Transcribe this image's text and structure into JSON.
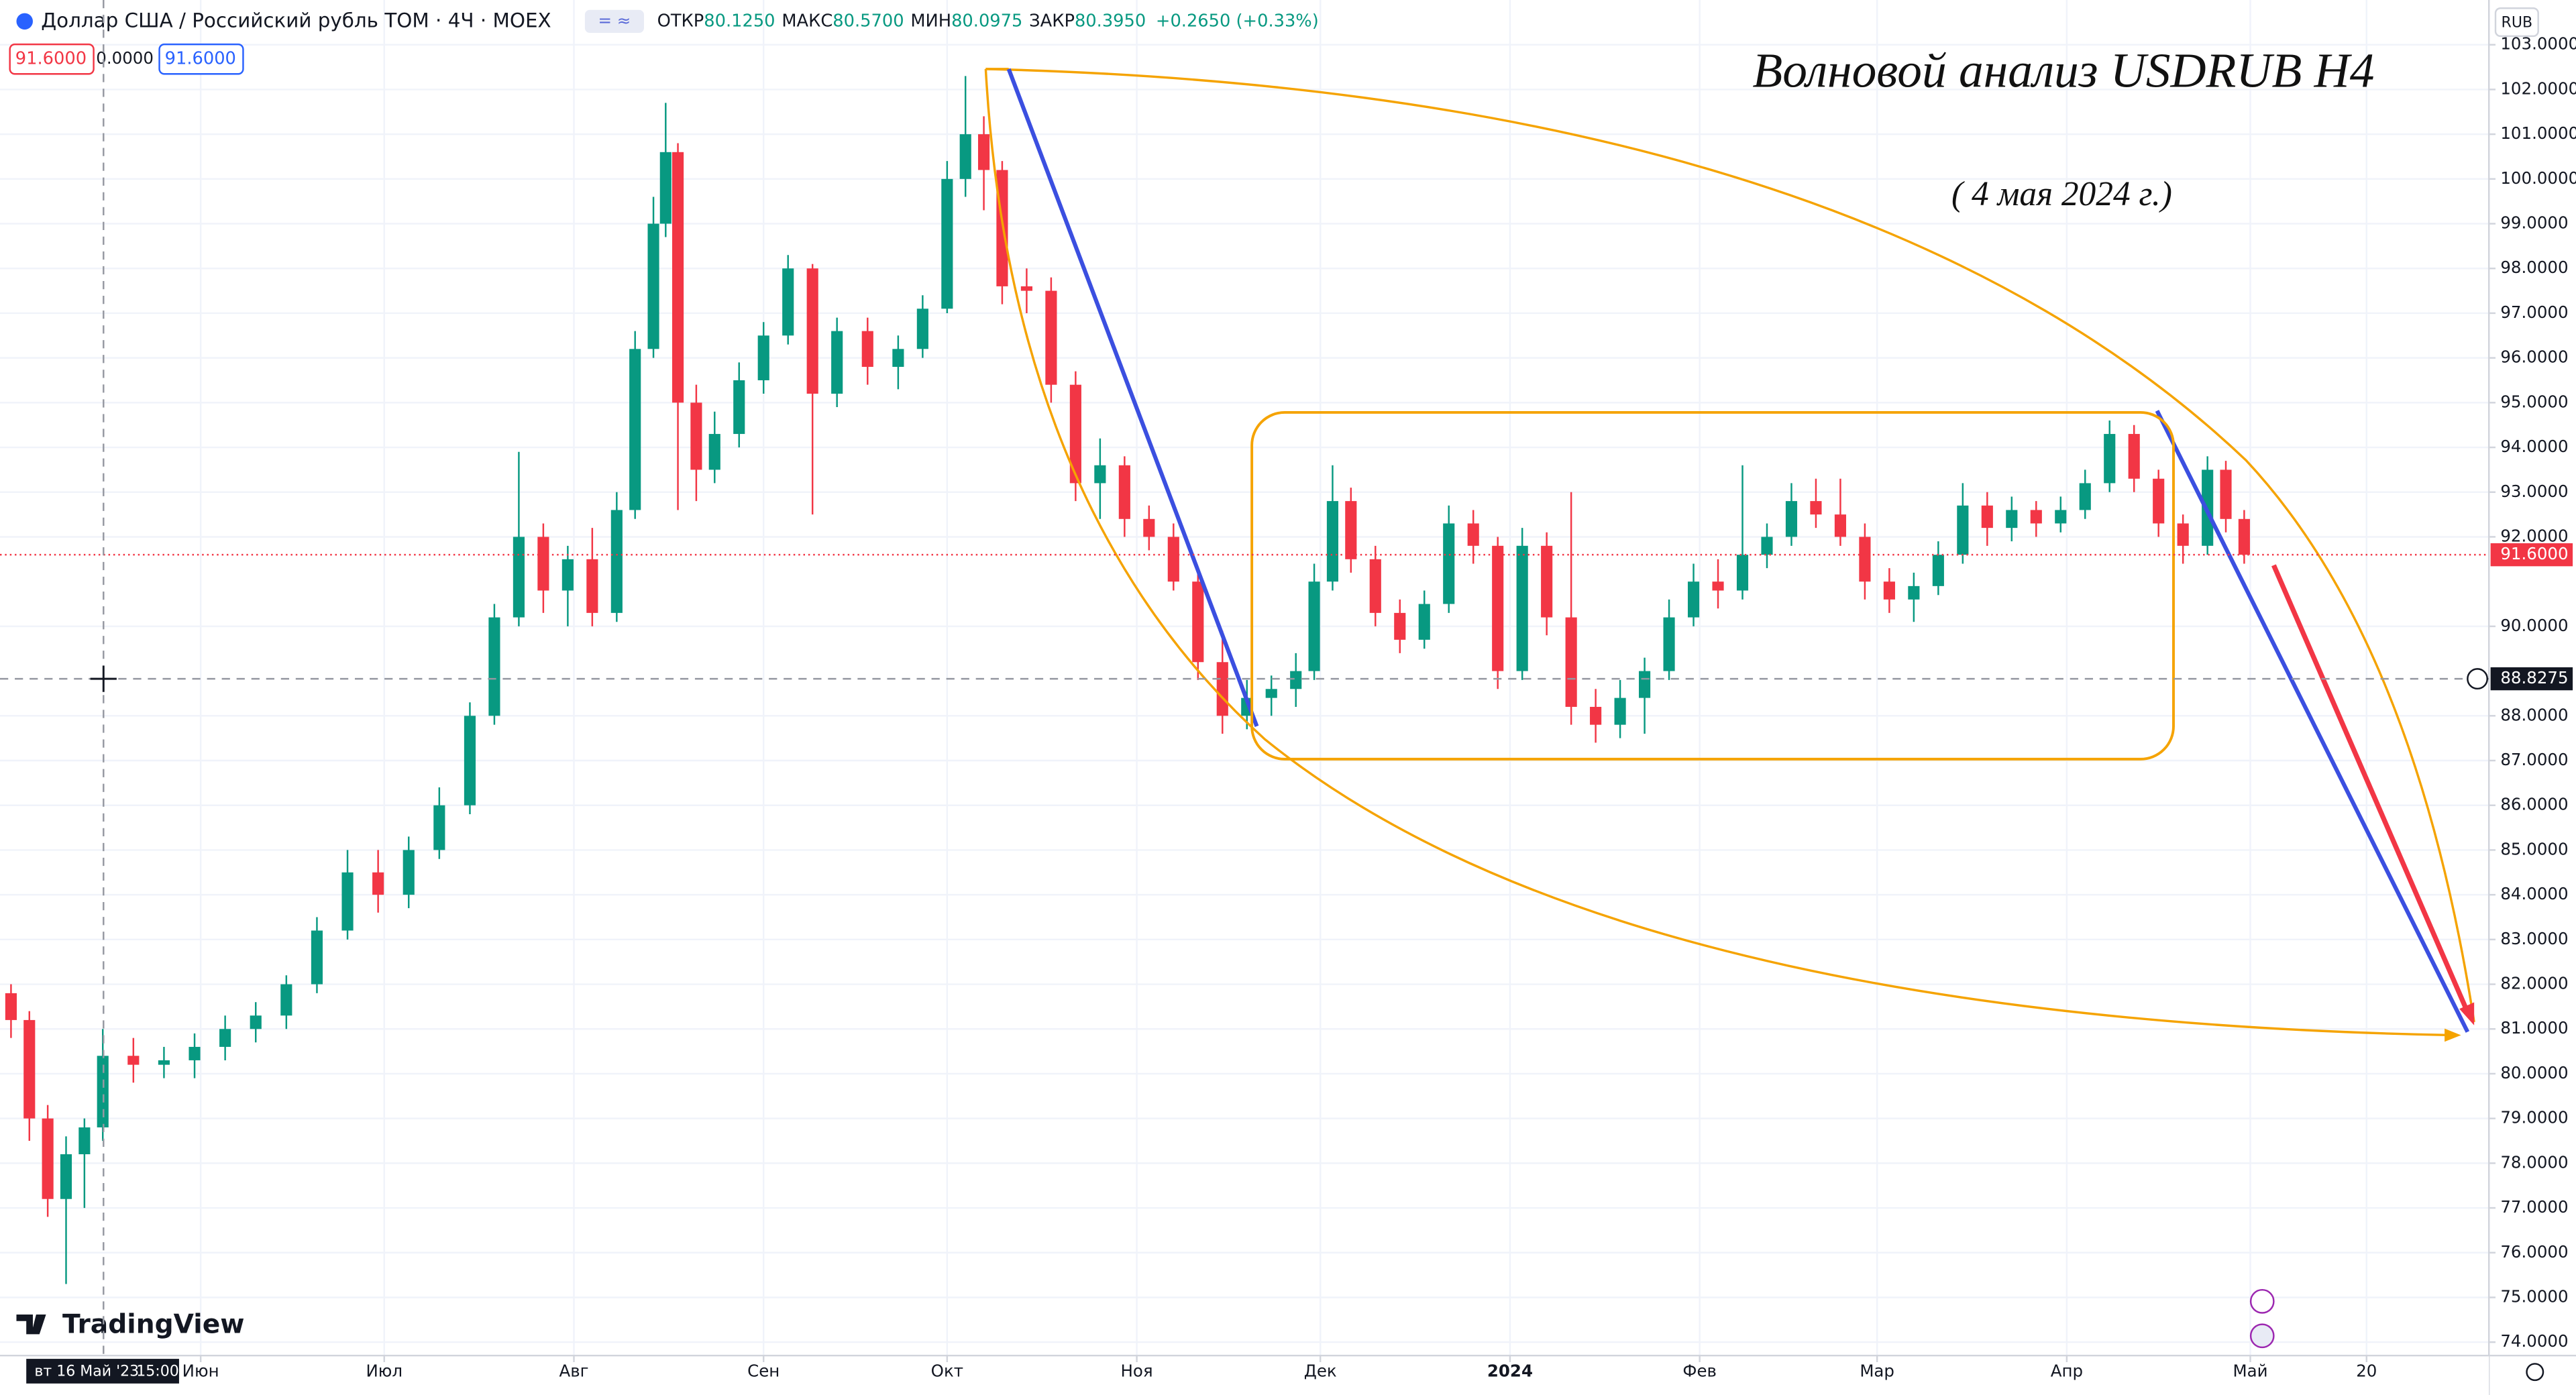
{
  "chart_data": {
    "type": "candlestick",
    "symbol": "Доллар США / Российский рубль TOM · 4Ч · MOEX",
    "ohlc_header": [
      {
        "label": "ОТКР",
        "value": "80.1250"
      },
      {
        "label": "МАКС",
        "value": "80.5700"
      },
      {
        "label": "МИН",
        "value": "80.0975"
      },
      {
        "label": "ЗАКР",
        "value": "80.3950"
      }
    ],
    "change": "+0.2650 (+0.33%)",
    "price_boxes": [
      "91.6000",
      "0.0000",
      "91.6000"
    ],
    "annotations": [
      "Волновой анализ USDRUB H4",
      "( 4 мая 2024 г.)"
    ],
    "currency": "RUB",
    "brand": "TradingView",
    "last_price": {
      "value": 91.6,
      "label": "91.6000"
    },
    "crosshair": {
      "value": 88.8275,
      "label": "88.8275",
      "time_label": "вт 16 Май '23",
      "time": "15:00"
    },
    "up_color": "#089981",
    "down_color": "#f23645",
    "grid": true,
    "xlim": [
      -1.8,
      405
    ],
    "xticks": [
      {
        "value": 31,
        "label": "Июн"
      },
      {
        "value": 61,
        "label": "Июл"
      },
      {
        "value": 92,
        "label": "Авг"
      },
      {
        "value": 123,
        "label": "Сен"
      },
      {
        "value": 153,
        "label": "Окт"
      },
      {
        "value": 184,
        "label": "Ноя"
      },
      {
        "value": 214,
        "label": "Дек"
      },
      {
        "value": 245,
        "label": "2024"
      },
      {
        "value": 276,
        "label": "Фев"
      },
      {
        "value": 305,
        "label": "Мар"
      },
      {
        "value": 336,
        "label": "Апр"
      },
      {
        "value": 366,
        "label": "Май"
      },
      {
        "value": 385,
        "label": "20"
      }
    ],
    "ylim": [
      73.7,
      104
    ],
    "yticks": [
      {
        "value": 74,
        "label": "74.0000"
      },
      {
        "value": 75,
        "label": "75.0000"
      },
      {
        "value": 76,
        "label": "76.0000"
      },
      {
        "value": 77,
        "label": "77.0000"
      },
      {
        "value": 78,
        "label": "78.0000"
      },
      {
        "value": 79,
        "label": "79.0000"
      },
      {
        "value": 80,
        "label": "80.0000"
      },
      {
        "value": 81,
        "label": "81.0000"
      },
      {
        "value": 82,
        "label": "82.0000"
      },
      {
        "value": 83,
        "label": "83.0000"
      },
      {
        "value": 84,
        "label": "84.0000"
      },
      {
        "value": 85,
        "label": "85.0000"
      },
      {
        "value": 86,
        "label": "86.0000"
      },
      {
        "value": 87,
        "label": "87.0000"
      },
      {
        "value": 88,
        "label": "88.0000"
      },
      {
        "value": 90,
        "label": "90.0000"
      },
      {
        "value": 92,
        "label": "92.0000"
      },
      {
        "value": 93,
        "label": "93.0000"
      },
      {
        "value": 94,
        "label": "94.0000"
      },
      {
        "value": 95,
        "label": "95.0000"
      },
      {
        "value": 96,
        "label": "96.0000"
      },
      {
        "value": 97,
        "label": "97.0000"
      },
      {
        "value": 98,
        "label": "98.0000"
      },
      {
        "value": 99,
        "label": "99.0000"
      },
      {
        "value": 100,
        "label": "100.0000"
      },
      {
        "value": 101,
        "label": "101.0000"
      },
      {
        "value": 102,
        "label": "102.0000"
      },
      {
        "value": 103,
        "label": "103.0000"
      }
    ],
    "x": [
      0,
      3,
      6,
      9,
      12,
      15,
      20,
      25,
      30,
      35,
      40,
      45,
      50,
      55,
      60,
      65,
      70,
      75,
      79,
      83,
      87,
      91,
      95,
      99,
      102,
      105,
      107,
      109,
      112,
      115,
      119,
      123,
      127,
      131,
      135,
      140,
      145,
      149,
      153,
      156,
      159,
      162,
      166,
      170,
      174,
      178,
      182,
      186,
      190,
      194,
      198,
      202,
      206,
      210,
      213,
      216,
      219,
      223,
      227,
      231,
      235,
      239,
      243,
      247,
      251,
      255,
      259,
      263,
      267,
      271,
      275,
      279,
      283,
      287,
      291,
      295,
      299,
      303,
      307,
      311,
      315,
      319,
      323,
      327,
      331,
      335,
      339,
      343,
      347,
      351,
      355,
      359,
      362,
      365
    ],
    "open": [
      81.8,
      81.2,
      79.0,
      77.2,
      78.2,
      78.8,
      80.4,
      80.2,
      80.3,
      80.6,
      81.0,
      81.3,
      82.0,
      83.2,
      84.5,
      84.0,
      85.0,
      86.0,
      88.0,
      90.2,
      92.0,
      90.8,
      91.5,
      90.3,
      92.6,
      96.2,
      99.0,
      100.6,
      95.0,
      93.5,
      94.3,
      95.5,
      96.5,
      98.0,
      95.2,
      96.6,
      95.8,
      96.2,
      97.1,
      100.0,
      101.0,
      100.2,
      97.6,
      97.5,
      95.4,
      93.2,
      93.6,
      92.4,
      92.0,
      91.0,
      89.2,
      88.0,
      88.4,
      88.6,
      89.0,
      91.0,
      92.8,
      91.5,
      90.3,
      89.7,
      90.5,
      92.3,
      91.8,
      89.0,
      91.8,
      90.2,
      88.2,
      87.8,
      88.4,
      89.0,
      90.2,
      91.0,
      90.8,
      91.6,
      92.0,
      92.8,
      92.5,
      92.0,
      91.0,
      90.6,
      90.9,
      91.6,
      92.7,
      92.2,
      92.6,
      92.3,
      92.6,
      93.2,
      94.3,
      93.3,
      92.3,
      91.8,
      93.5,
      92.4
    ],
    "high": [
      82.0,
      81.4,
      79.3,
      78.6,
      79.0,
      81.0,
      80.8,
      80.6,
      80.9,
      81.3,
      81.6,
      82.2,
      83.5,
      85.0,
      85.0,
      85.3,
      86.4,
      88.3,
      90.5,
      93.9,
      92.3,
      91.8,
      92.2,
      93.0,
      96.6,
      99.6,
      101.7,
      100.8,
      95.4,
      94.8,
      95.9,
      96.8,
      98.3,
      98.1,
      96.9,
      96.9,
      96.5,
      97.4,
      100.4,
      102.3,
      101.4,
      100.4,
      98.0,
      97.8,
      95.7,
      94.2,
      93.8,
      92.7,
      92.3,
      91.3,
      89.9,
      88.8,
      88.9,
      89.4,
      91.4,
      93.6,
      93.1,
      91.8,
      90.6,
      90.8,
      92.7,
      92.6,
      92.0,
      92.2,
      92.1,
      93.0,
      88.6,
      88.8,
      89.3,
      90.6,
      91.4,
      91.5,
      93.6,
      92.3,
      93.2,
      93.3,
      93.3,
      92.3,
      91.3,
      91.2,
      91.9,
      93.2,
      93.0,
      92.9,
      92.8,
      92.9,
      93.5,
      94.6,
      94.5,
      93.5,
      92.5,
      93.8,
      93.7,
      92.6
    ],
    "low": [
      80.8,
      78.5,
      76.8,
      75.3,
      77.0,
      78.5,
      79.8,
      79.9,
      79.9,
      80.3,
      80.7,
      81.0,
      81.8,
      83.0,
      83.6,
      83.7,
      84.8,
      85.8,
      87.8,
      90.0,
      90.3,
      90.0,
      90.0,
      90.1,
      92.4,
      96.0,
      98.7,
      92.6,
      92.8,
      93.2,
      94.0,
      95.2,
      96.3,
      92.5,
      94.9,
      95.4,
      95.3,
      96.0,
      97.0,
      99.6,
      99.3,
      97.2,
      97.0,
      95.0,
      92.8,
      92.4,
      92.0,
      91.7,
      90.8,
      88.8,
      87.6,
      87.7,
      88.0,
      88.2,
      88.8,
      90.8,
      91.2,
      90.0,
      89.4,
      89.5,
      90.3,
      91.4,
      88.6,
      88.8,
      89.8,
      87.8,
      87.4,
      87.5,
      87.6,
      88.8,
      90.0,
      90.4,
      90.6,
      91.3,
      91.8,
      92.2,
      91.8,
      90.6,
      90.3,
      90.1,
      90.7,
      91.4,
      91.8,
      91.9,
      92.0,
      92.1,
      92.4,
      93.0,
      93.0,
      92.0,
      91.4,
      91.6,
      92.1,
      91.4
    ],
    "close": [
      81.2,
      79.0,
      77.2,
      78.2,
      78.8,
      80.4,
      80.2,
      80.3,
      80.6,
      81.0,
      81.3,
      82.0,
      83.2,
      84.5,
      84.0,
      85.0,
      86.0,
      88.0,
      90.2,
      92.0,
      90.8,
      91.5,
      90.3,
      92.6,
      96.2,
      99.0,
      100.6,
      95.0,
      93.5,
      94.3,
      95.5,
      96.5,
      98.0,
      95.2,
      96.6,
      95.8,
      96.2,
      97.1,
      100.0,
      101.0,
      100.2,
      97.6,
      97.5,
      95.4,
      93.2,
      93.6,
      92.4,
      92.0,
      91.0,
      89.2,
      88.0,
      88.4,
      88.6,
      89.0,
      91.0,
      92.8,
      91.5,
      90.3,
      89.7,
      90.5,
      92.3,
      91.8,
      89.0,
      91.8,
      90.2,
      88.2,
      87.8,
      88.4,
      89.0,
      90.2,
      91.0,
      90.8,
      91.6,
      92.0,
      92.8,
      92.5,
      92.0,
      91.0,
      90.6,
      90.9,
      91.6,
      92.7,
      92.2,
      92.6,
      92.3,
      92.6,
      93.2,
      94.3,
      93.3,
      92.3,
      91.8,
      93.5,
      92.4,
      91.6
    ]
  }
}
